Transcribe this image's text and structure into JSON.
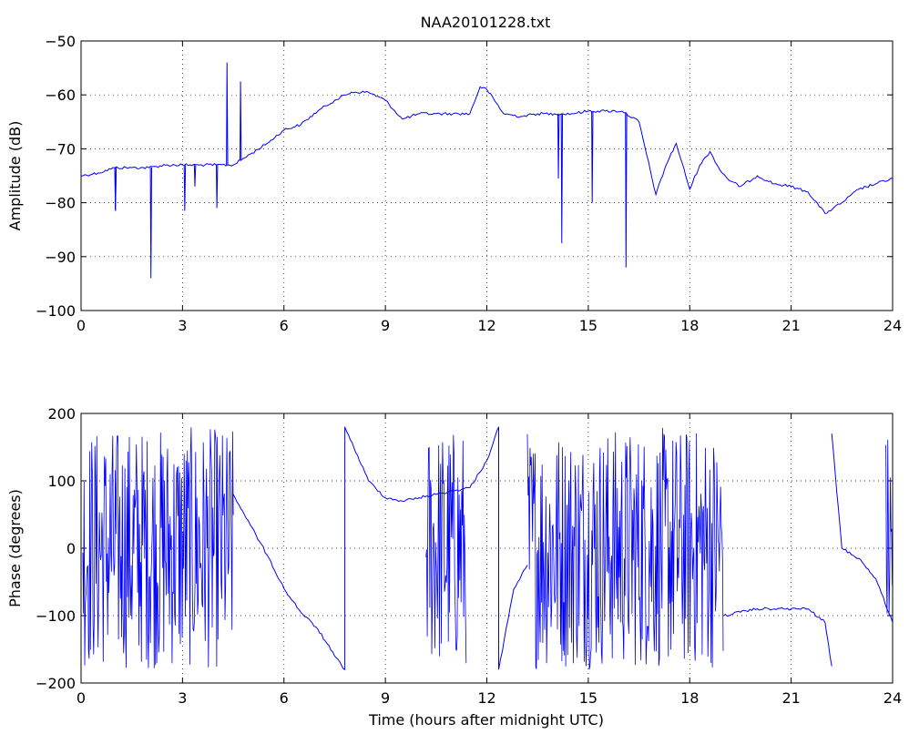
{
  "figure_title": "NAA20101228.txt",
  "chart_data": [
    {
      "type": "line",
      "title": "NAA20101228.txt",
      "xlabel": "",
      "ylabel": "Amplitude (dB)",
      "xlim": [
        0,
        24
      ],
      "ylim": [
        -100,
        -50
      ],
      "xticks": [
        0,
        3,
        6,
        9,
        12,
        15,
        18,
        21,
        24
      ],
      "yticks": [
        -100,
        -90,
        -80,
        -70,
        -60,
        -50
      ],
      "grid": true,
      "series": [
        {
          "color": "#0000ff",
          "x": [
            0,
            0.5,
            1.0,
            1.5,
            2.0,
            2.5,
            3.0,
            3.5,
            4.0,
            4.5,
            5.0,
            5.5,
            6.0,
            6.5,
            7.0,
            7.5,
            8.0,
            8.5,
            9.0,
            9.5,
            10.0,
            10.5,
            11.0,
            11.5,
            11.8,
            12.0,
            12.5,
            13.0,
            13.5,
            14.0,
            14.5,
            15.0,
            15.5,
            16.0,
            16.5,
            17.0,
            17.3,
            17.6,
            18.0,
            18.3,
            18.6,
            18.9,
            19.2,
            19.5,
            20.0,
            20.5,
            21.0,
            21.5,
            22.0,
            22.5,
            23.0,
            23.5,
            24.0
          ],
          "y": [
            -75,
            -74.5,
            -73.5,
            -73.5,
            -73.5,
            -73,
            -73,
            -73,
            -73,
            -73,
            -71,
            -69,
            -66.5,
            -65.5,
            -63,
            -61,
            -59.5,
            -59.5,
            -61,
            -64.5,
            -63.5,
            -63.5,
            -63.5,
            -63.5,
            -58.5,
            -59,
            -63.5,
            -64,
            -63.5,
            -63.5,
            -63.5,
            -63,
            -63,
            -63,
            -65,
            -78.5,
            -73,
            -69,
            -77.5,
            -73,
            -70.5,
            -74,
            -76,
            -77,
            -75,
            -76.5,
            -77,
            -78,
            -82,
            -80,
            -77.5,
            -76.5,
            -75.5
          ]
        }
      ],
      "spikes": [
        {
          "x": 1.0,
          "y": -81.5
        },
        {
          "x": 1.0,
          "y": -81.5
        },
        {
          "x": 2.05,
          "y": -94
        },
        {
          "x": 3.05,
          "y": -81.5
        },
        {
          "x": 3.35,
          "y": -77
        },
        {
          "x": 4.0,
          "y": -81
        },
        {
          "x": 4.3,
          "y": -54
        },
        {
          "x": 4.7,
          "y": -57.5
        },
        {
          "x": 14.1,
          "y": -75.5
        },
        {
          "x": 14.2,
          "y": -87.5
        },
        {
          "x": 15.1,
          "y": -80
        },
        {
          "x": 16.1,
          "y": -92
        }
      ]
    },
    {
      "type": "line",
      "title": "",
      "xlabel": "Time (hours after midnight UTC)",
      "ylabel": "Phase (degrees)",
      "xlim": [
        0,
        24
      ],
      "ylim": [
        -200,
        200
      ],
      "xticks": [
        0,
        3,
        6,
        9,
        12,
        15,
        18,
        21,
        24
      ],
      "yticks": [
        -200,
        -100,
        0,
        100,
        200
      ],
      "grid": true,
      "series": [
        {
          "color": "#0000ff",
          "x": [
            4.5,
            5.0,
            5.5,
            6.0,
            6.5,
            7.0,
            7.5,
            7.8,
            7.8,
            8.5,
            9.0,
            9.5,
            10.0,
            10.5,
            11.0,
            11.5,
            12.0,
            12.35,
            12.35,
            12.8,
            13.2
          ],
          "y": [
            80,
            35,
            -10,
            -60,
            -95,
            -120,
            -160,
            -180,
            180,
            100,
            75,
            70,
            75,
            80,
            85,
            90,
            130,
            180,
            -180,
            -60,
            -25
          ]
        },
        {
          "color": "#0000ff",
          "x": [
            19.0,
            19.5,
            20.0,
            20.5,
            21.0,
            21.5,
            22.0,
            22.2
          ],
          "y": [
            -100,
            -95,
            -90,
            -90,
            -90,
            -90,
            -110,
            -175
          ]
        },
        {
          "color": "#0000ff",
          "x": [
            22.2,
            22.5,
            23.0,
            23.5,
            24.0
          ],
          "y": [
            170,
            0,
            -15,
            -45,
            -110
          ]
        }
      ],
      "noise_regions": [
        {
          "x": [
            0.05,
            4.5
          ],
          "y": [
            -180,
            180
          ]
        },
        {
          "x": [
            10.2,
            11.4
          ],
          "y": [
            -180,
            180
          ]
        },
        {
          "x": [
            13.2,
            19.0
          ],
          "y": [
            -180,
            180
          ]
        },
        {
          "x": [
            23.8,
            24.0
          ],
          "y": [
            -170,
            180
          ]
        }
      ]
    }
  ]
}
